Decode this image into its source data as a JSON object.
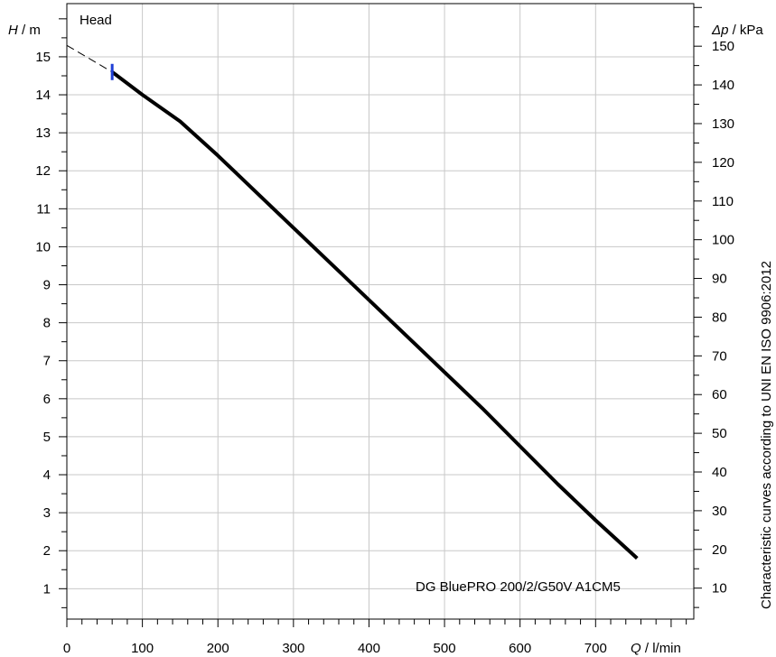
{
  "chart_data": {
    "type": "line",
    "title": "Head",
    "subtitle": "Characteristic curves according to UNI EN ISO 9906:2012",
    "xlabel": {
      "symbol": "Q",
      "unit": "l/min"
    },
    "ylabel": {
      "symbol": "H",
      "unit": "m"
    },
    "y2label": {
      "symbol": "Δp",
      "unit": "kPa"
    },
    "xlim": [
      0,
      830
    ],
    "ylim": [
      0.2,
      16.4
    ],
    "y2lim": [
      2,
      161
    ],
    "xticks": [
      0,
      100,
      200,
      300,
      400,
      500,
      600,
      700
    ],
    "yticks": [
      1,
      2,
      3,
      4,
      5,
      6,
      7,
      8,
      9,
      10,
      11,
      12,
      13,
      14,
      15
    ],
    "y2ticks": [
      10,
      20,
      30,
      40,
      50,
      60,
      70,
      80,
      90,
      100,
      110,
      120,
      130,
      140,
      150
    ],
    "grid": true,
    "series": [
      {
        "name": "DG BluePRO 200/2/G50V A1CM5",
        "color": "#000000",
        "x": [
          60,
          100,
          150,
          200,
          250,
          300,
          350,
          400,
          450,
          500,
          550,
          600,
          650,
          700,
          755
        ],
        "y": [
          14.6,
          14.0,
          13.3,
          12.4,
          11.45,
          10.5,
          9.55,
          8.6,
          7.65,
          6.7,
          5.75,
          4.75,
          3.75,
          2.8,
          1.8
        ]
      }
    ],
    "extrapolation": {
      "style": "dashed",
      "x": [
        0,
        60
      ],
      "y": [
        15.3,
        14.6
      ]
    },
    "operating_point_marker": {
      "x": 60,
      "y": 14.6,
      "color": "#1f3fd6"
    }
  }
}
